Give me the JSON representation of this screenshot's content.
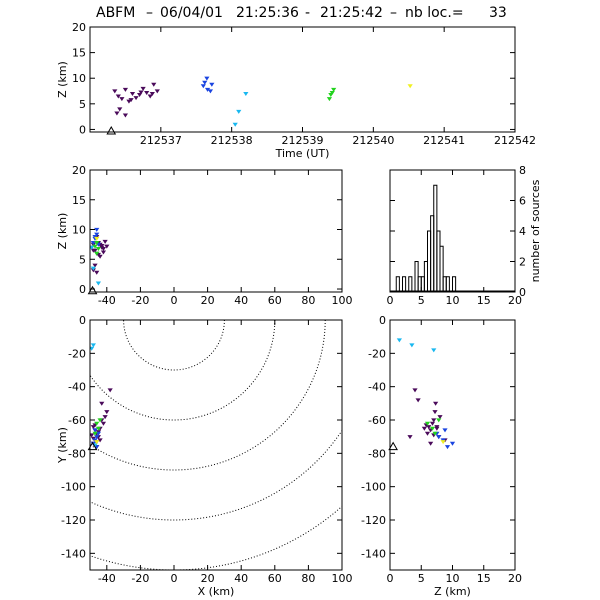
{
  "title": {
    "station": "ABFM",
    "date": "06/04/01",
    "start": "21:25:36",
    "dash": "-",
    "end": "21:25:42",
    "nb_label": "nb loc.=",
    "nb_value": "33"
  },
  "colors": {
    "axis": "#000000",
    "points": [
      "#4a0a5a",
      "#1a44e0",
      "#18b8f0",
      "#22d21e",
      "#f0f020"
    ]
  },
  "chart_data": [
    {
      "id": "time-height",
      "type": "scatter",
      "xlabel": "Time (UT)",
      "ylabel": "Z (km)",
      "xlim": [
        212536.0,
        212542.0
      ],
      "ylim": [
        -0.5,
        20
      ],
      "xticks": [
        212537,
        212538,
        212539,
        212540,
        212541,
        212542
      ],
      "xtick_labels": [
        "212537",
        "212538",
        "212539",
        "212540",
        "212541",
        "212542"
      ],
      "yticks": [
        0,
        5,
        10,
        15,
        20
      ],
      "ytick_labels": [
        "0",
        "5",
        "10",
        "15",
        "20"
      ],
      "series": [
        {
          "color_index": 0,
          "x": [
            212536.35,
            212536.4,
            212536.45,
            212536.5,
            212536.55,
            212536.6,
            212536.7,
            212536.75,
            212536.8,
            212536.85,
            212536.9,
            212536.95,
            212536.42,
            212536.58,
            212536.72,
            212536.88,
            212536.38,
            212536.5,
            212536.65
          ],
          "y": [
            7.5,
            6.5,
            6.0,
            7.8,
            5.5,
            7.0,
            6.8,
            8.0,
            7.2,
            6.5,
            8.8,
            7.5,
            4.0,
            5.8,
            7.3,
            7.0,
            3.2,
            2.8,
            6.2
          ]
        },
        {
          "color_index": 1,
          "x": [
            212537.6,
            212537.65,
            212537.7,
            212537.72,
            212537.66,
            212537.62
          ],
          "y": [
            8.5,
            10.0,
            7.5,
            8.8,
            7.8,
            9.2
          ]
        },
        {
          "color_index": 2,
          "x": [
            212538.05,
            212538.1,
            212538.2
          ],
          "y": [
            1.0,
            3.5,
            7.0
          ]
        },
        {
          "color_index": 3,
          "x": [
            212539.38,
            212539.4,
            212539.42,
            212539.44
          ],
          "y": [
            6.0,
            6.8,
            7.2,
            7.8
          ]
        },
        {
          "color_index": 4,
          "x": [
            212540.52
          ],
          "y": [
            8.5
          ]
        }
      ],
      "markers": [
        {
          "shape": "triangle",
          "x": 212536.3,
          "y": -0.3
        }
      ]
    },
    {
      "id": "x-height",
      "type": "scatter",
      "xlabel": "",
      "ylabel": "Z (km)",
      "xlim": [
        -50,
        100
      ],
      "ylim": [
        -0.5,
        20
      ],
      "xticks": [
        -40,
        -20,
        0,
        20,
        40,
        60,
        80,
        100
      ],
      "xtick_labels": [
        "-40",
        "-20",
        "0",
        "20",
        "40",
        "60",
        "80",
        "100"
      ],
      "yticks": [
        0,
        5,
        10,
        15,
        20
      ],
      "ytick_labels": [
        "0",
        "5",
        "10",
        "15",
        "20"
      ],
      "series": [
        {
          "color_index": 0,
          "x": [
            -48,
            -47,
            -46,
            -45,
            -44,
            -43,
            -42,
            -41,
            -40,
            -48,
            -46,
            -44,
            -47,
            -45,
            -43,
            -49,
            -48,
            -46,
            -42
          ],
          "y": [
            7.5,
            6.5,
            6.0,
            7.8,
            5.5,
            7.0,
            6.8,
            8.0,
            7.2,
            6.5,
            8.8,
            7.5,
            4.0,
            5.8,
            7.3,
            7.0,
            3.2,
            2.8,
            6.2
          ]
        },
        {
          "color_index": 1,
          "x": [
            -47,
            -46,
            -45,
            -47,
            -48,
            -46
          ],
          "y": [
            8.5,
            10.0,
            7.5,
            8.8,
            7.8,
            9.2
          ]
        },
        {
          "color_index": 2,
          "x": [
            -45,
            -48,
            -49
          ],
          "y": [
            1.0,
            3.5,
            7.0
          ]
        },
        {
          "color_index": 3,
          "x": [
            -46,
            -45,
            -47,
            -46
          ],
          "y": [
            6.0,
            6.8,
            7.2,
            7.8
          ]
        },
        {
          "color_index": 4,
          "x": [
            -46
          ],
          "y": [
            8.5
          ]
        }
      ],
      "markers": [
        {
          "shape": "triangle",
          "x": -48.5,
          "y": -0.3
        }
      ]
    },
    {
      "id": "height-histogram",
      "type": "bar",
      "xlabel": "",
      "ylabel": "number of sources",
      "xlim": [
        0,
        20
      ],
      "ylim": [
        0,
        8
      ],
      "xticks": [
        0,
        5,
        10,
        15,
        20
      ],
      "xtick_labels": [
        "0",
        "5",
        "10",
        "15",
        "20"
      ],
      "yticks": [
        0,
        2,
        4,
        6,
        8
      ],
      "ytick_labels": [
        "0",
        "2",
        "4",
        "6",
        "8"
      ],
      "bin_start": 0,
      "bin_width": 0.5,
      "values": [
        0,
        0,
        1,
        0,
        1,
        0,
        1,
        0,
        2,
        1,
        1,
        2,
        4,
        5,
        7,
        4,
        3,
        1,
        1,
        0,
        1,
        0,
        0,
        0,
        0,
        0,
        0,
        0,
        0,
        0,
        0,
        0,
        0,
        0,
        0,
        0,
        0,
        0,
        0,
        0
      ]
    },
    {
      "id": "plan-view",
      "type": "scatter",
      "xlabel": "X (km)",
      "ylabel": "Y (km)",
      "xlim": [
        -50,
        100
      ],
      "ylim": [
        -150,
        0
      ],
      "xticks": [
        -40,
        -20,
        0,
        20,
        40,
        60,
        80,
        100
      ],
      "xtick_labels": [
        "-40",
        "-20",
        "0",
        "20",
        "40",
        "60",
        "80",
        "100"
      ],
      "yticks": [
        -140,
        -120,
        -100,
        -80,
        -60,
        -40,
        -20,
        0
      ],
      "ytick_labels": [
        "-140",
        "-120",
        "-100",
        "-80",
        "-60",
        "-40",
        "-20",
        "0"
      ],
      "range_rings_km": [
        30,
        60,
        90,
        120,
        150
      ],
      "ring_center": [
        0,
        0
      ],
      "series": [
        {
          "color_index": 0,
          "x": [
            -48,
            -47,
            -46,
            -45,
            -44,
            -43,
            -42,
            -41,
            -40,
            -48,
            -46,
            -44,
            -47,
            -45,
            -43,
            -49,
            -48,
            -46,
            -38
          ],
          "y": [
            -64,
            -66,
            -68,
            -70,
            -72,
            -60,
            -62,
            -58,
            -55,
            -74,
            -76,
            -65,
            -63,
            -67,
            -50,
            -69,
            -71,
            -73,
            -42
          ]
        },
        {
          "color_index": 1,
          "x": [
            -47,
            -46,
            -45,
            -47,
            -48,
            -46
          ],
          "y": [
            -72,
            -70,
            -68,
            -66,
            -74,
            -76
          ]
        },
        {
          "color_index": 2,
          "x": [
            -49,
            -48,
            -47
          ],
          "y": [
            -17,
            -15,
            -75
          ]
        },
        {
          "color_index": 3,
          "x": [
            -46,
            -45,
            -47,
            -44
          ],
          "y": [
            -62,
            -65,
            -68,
            -60
          ]
        },
        {
          "color_index": 4,
          "x": [
            -46
          ],
          "y": [
            -73
          ]
        }
      ],
      "markers": [
        {
          "shape": "triangle",
          "x": -48.5,
          "y": -76
        }
      ]
    },
    {
      "id": "height-y",
      "type": "scatter",
      "xlabel": "Z (km)",
      "ylabel": "",
      "xlim": [
        0,
        20
      ],
      "ylim": [
        -150,
        0
      ],
      "xticks": [
        0,
        5,
        10,
        15,
        20
      ],
      "xtick_labels": [
        "0",
        "5",
        "10",
        "15",
        "20"
      ],
      "yticks": [
        -140,
        -120,
        -100,
        -80,
        -60,
        -40,
        -20,
        0
      ],
      "ytick_labels": [
        "-140",
        "-120",
        "-100",
        "-80",
        "-60",
        "-40",
        "-20",
        "0"
      ],
      "series": [
        {
          "color_index": 0,
          "x": [
            7.5,
            6.5,
            6.0,
            7.8,
            5.5,
            7.0,
            6.8,
            8.0,
            7.2,
            6.5,
            8.8,
            7.5,
            4.0,
            5.8,
            7.3,
            7.0,
            3.2,
            4.5,
            6.2
          ],
          "y": [
            -64,
            -66,
            -68,
            -70,
            -65,
            -60,
            -62,
            -58,
            -55,
            -74,
            -72,
            -65,
            -42,
            -63,
            -50,
            -69,
            -70,
            -48,
            -64
          ]
        },
        {
          "color_index": 1,
          "x": [
            8.5,
            10.0,
            7.5,
            8.8,
            7.8,
            9.2
          ],
          "y": [
            -72,
            -74,
            -68,
            -66,
            -70,
            -76
          ]
        },
        {
          "color_index": 2,
          "x": [
            1.5,
            3.5,
            7.0
          ],
          "y": [
            -12,
            -15,
            -18
          ]
        },
        {
          "color_index": 3,
          "x": [
            6.0,
            6.8,
            7.2,
            7.8
          ],
          "y": [
            -62,
            -65,
            -68,
            -60
          ]
        },
        {
          "color_index": 4,
          "x": [
            8.5
          ],
          "y": [
            -73
          ]
        }
      ],
      "markers": [
        {
          "shape": "triangle",
          "x": 0.5,
          "y": -76
        }
      ]
    }
  ]
}
